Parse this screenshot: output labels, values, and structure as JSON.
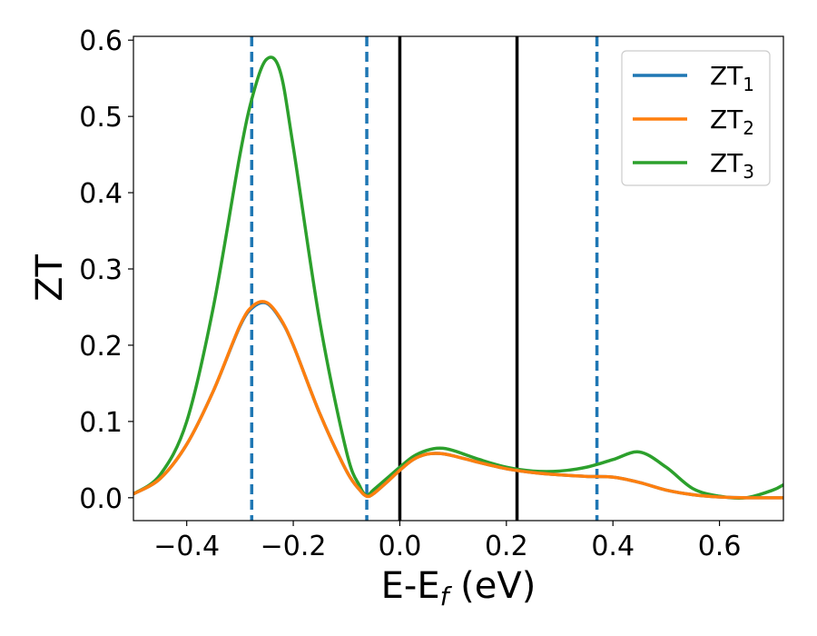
{
  "chart_data": {
    "type": "line",
    "xlabel": "E-E",
    "xlabel_subscript": "f",
    "xlabel_unit": "(eV)",
    "ylabel": "ZT",
    "xlim": [
      -0.5,
      0.72
    ],
    "ylim": [
      -0.03,
      0.605
    ],
    "grid": false,
    "legend_position": "top-right",
    "x_ticks": [
      -0.4,
      -0.2,
      0.0,
      0.2,
      0.4,
      0.6
    ],
    "x_tick_labels": [
      "−0.4",
      "−0.2",
      "0.0",
      "0.2",
      "0.4",
      "0.6"
    ],
    "y_ticks": [
      0.0,
      0.1,
      0.2,
      0.3,
      0.4,
      0.5,
      0.6
    ],
    "y_tick_labels": [
      "0.0",
      "0.1",
      "0.2",
      "0.3",
      "0.4",
      "0.5",
      "0.6"
    ],
    "vlines_solid": [
      0.0,
      0.22
    ],
    "vlines_dashed": [
      -0.278,
      -0.062,
      0.37
    ],
    "series": [
      {
        "name": "ZT",
        "subscript": "1",
        "color": "#1f77b4",
        "x": [
          -0.5,
          -0.45,
          -0.4,
          -0.35,
          -0.3,
          -0.275,
          -0.25,
          -0.225,
          -0.2,
          -0.15,
          -0.1,
          -0.075,
          -0.062,
          -0.05,
          -0.025,
          0.0,
          0.025,
          0.05,
          0.075,
          0.1,
          0.15,
          0.2,
          0.25,
          0.3,
          0.35,
          0.4,
          0.45,
          0.5,
          0.55,
          0.6,
          0.65,
          0.7,
          0.72
        ],
        "y": [
          0.005,
          0.025,
          0.07,
          0.14,
          0.225,
          0.25,
          0.255,
          0.235,
          0.2,
          0.11,
          0.035,
          0.01,
          0.002,
          0.005,
          0.02,
          0.036,
          0.05,
          0.057,
          0.058,
          0.055,
          0.046,
          0.038,
          0.033,
          0.03,
          0.028,
          0.027,
          0.02,
          0.01,
          0.004,
          0.001,
          0.0,
          0.0,
          0.0
        ]
      },
      {
        "name": "ZT",
        "subscript": "2",
        "color": "#ff7f0e",
        "x": [
          -0.5,
          -0.45,
          -0.4,
          -0.35,
          -0.3,
          -0.275,
          -0.25,
          -0.225,
          -0.2,
          -0.15,
          -0.1,
          -0.075,
          -0.062,
          -0.05,
          -0.025,
          0.0,
          0.025,
          0.05,
          0.075,
          0.1,
          0.15,
          0.2,
          0.25,
          0.3,
          0.35,
          0.4,
          0.45,
          0.5,
          0.55,
          0.6,
          0.65,
          0.7,
          0.72
        ],
        "y": [
          0.005,
          0.025,
          0.07,
          0.14,
          0.226,
          0.252,
          0.256,
          0.236,
          0.2,
          0.11,
          0.035,
          0.01,
          0.002,
          0.005,
          0.02,
          0.036,
          0.05,
          0.057,
          0.058,
          0.055,
          0.046,
          0.038,
          0.033,
          0.03,
          0.028,
          0.027,
          0.02,
          0.01,
          0.004,
          0.001,
          0.0,
          0.0,
          0.0
        ]
      },
      {
        "name": "ZT",
        "subscript": "3",
        "color": "#2ca02c",
        "x": [
          -0.5,
          -0.45,
          -0.4,
          -0.35,
          -0.3,
          -0.275,
          -0.25,
          -0.225,
          -0.2,
          -0.15,
          -0.1,
          -0.075,
          -0.062,
          -0.05,
          -0.025,
          0.0,
          0.025,
          0.05,
          0.075,
          0.1,
          0.15,
          0.2,
          0.25,
          0.3,
          0.35,
          0.4,
          0.45,
          0.5,
          0.55,
          0.6,
          0.65,
          0.7,
          0.72
        ],
        "y": [
          0.005,
          0.03,
          0.1,
          0.25,
          0.45,
          0.53,
          0.575,
          0.56,
          0.46,
          0.23,
          0.06,
          0.015,
          0.003,
          0.01,
          0.025,
          0.04,
          0.054,
          0.062,
          0.065,
          0.062,
          0.05,
          0.04,
          0.035,
          0.035,
          0.04,
          0.05,
          0.06,
          0.04,
          0.012,
          0.002,
          0.0,
          0.01,
          0.017
        ]
      }
    ]
  }
}
